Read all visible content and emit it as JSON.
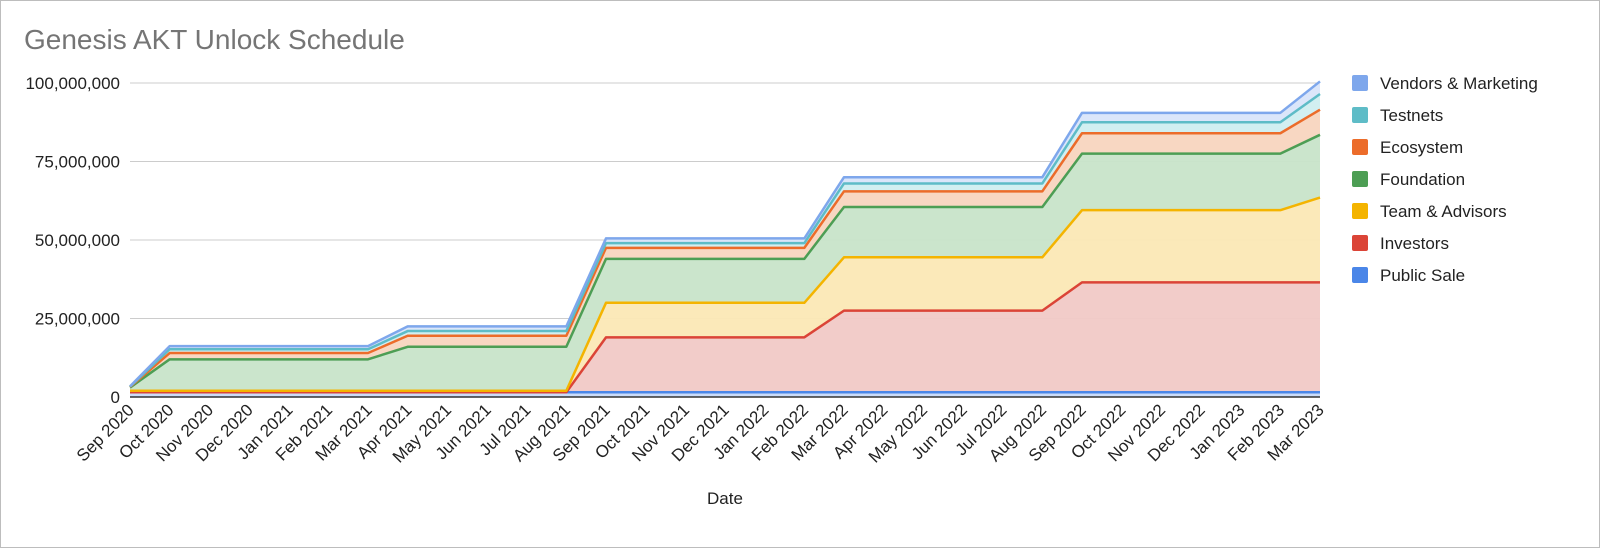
{
  "chart_data": {
    "type": "area",
    "stacked": true,
    "title": "Genesis AKT Unlock Schedule",
    "xlabel": "Date",
    "ylabel": "",
    "ylim": [
      0,
      100000000
    ],
    "yticks": [
      0,
      25000000,
      50000000,
      75000000,
      100000000
    ],
    "ytick_labels": [
      "0",
      "25,000,000",
      "50,000,000",
      "75,000,000",
      "100,000,000"
    ],
    "grid": true,
    "legend_position": "right",
    "categories": [
      "Sep 2020",
      "Oct 2020",
      "Nov 2020",
      "Dec 2020",
      "Jan 2021",
      "Feb 2021",
      "Mar 2021",
      "Apr 2021",
      "May 2021",
      "Jun 2021",
      "Jul 2021",
      "Aug 2021",
      "Sep 2021",
      "Oct 2021",
      "Nov 2021",
      "Dec 2021",
      "Jan 2022",
      "Feb 2022",
      "Mar 2022",
      "Apr 2022",
      "May 2022",
      "Jun 2022",
      "Jul 2022",
      "Aug 2022",
      "Sep 2022",
      "Oct 2022",
      "Nov 2022",
      "Dec 2022",
      "Jan 2023",
      "Feb 2023",
      "Mar 2023"
    ],
    "series": [
      {
        "name": "Public Sale",
        "color": "#4a86e8",
        "fill": "#c8daf9",
        "values": [
          1500000,
          1500000,
          1500000,
          1500000,
          1500000,
          1500000,
          1500000,
          1500000,
          1500000,
          1500000,
          1500000,
          1500000,
          1500000,
          1500000,
          1500000,
          1500000,
          1500000,
          1500000,
          1500000,
          1500000,
          1500000,
          1500000,
          1500000,
          1500000,
          1500000,
          1500000,
          1500000,
          1500000,
          1500000,
          1500000,
          1500000
        ]
      },
      {
        "name": "Investors",
        "color": "#db4437",
        "fill": "#f1c9c6",
        "values": [
          0,
          0,
          0,
          0,
          0,
          0,
          0,
          0,
          0,
          0,
          0,
          0,
          17500000,
          17500000,
          17500000,
          17500000,
          17500000,
          17500000,
          26000000,
          26000000,
          26000000,
          26000000,
          26000000,
          26000000,
          35000000,
          35000000,
          35000000,
          35000000,
          35000000,
          35000000,
          35000000
        ]
      },
      {
        "name": "Team & Advisors",
        "color": "#f4b400",
        "fill": "#fbe8b5",
        "values": [
          500000,
          500000,
          500000,
          500000,
          500000,
          500000,
          500000,
          500000,
          500000,
          500000,
          500000,
          500000,
          11000000,
          11000000,
          11000000,
          11000000,
          11000000,
          11000000,
          17000000,
          17000000,
          17000000,
          17000000,
          17000000,
          17000000,
          23000000,
          23000000,
          23000000,
          23000000,
          23000000,
          23000000,
          27000000
        ]
      },
      {
        "name": "Foundation",
        "color": "#4d9e54",
        "fill": "#c8e4c9",
        "values": [
          1000000,
          10000000,
          10000000,
          10000000,
          10000000,
          10000000,
          10000000,
          14000000,
          14000000,
          14000000,
          14000000,
          14000000,
          14000000,
          14000000,
          14000000,
          14000000,
          14000000,
          14000000,
          16000000,
          16000000,
          16000000,
          16000000,
          16000000,
          16000000,
          18000000,
          18000000,
          18000000,
          18000000,
          18000000,
          18000000,
          20000000
        ]
      },
      {
        "name": "Ecosystem",
        "color": "#ec6c2a",
        "fill": "#f8d5bf",
        "values": [
          200000,
          2000000,
          2000000,
          2000000,
          2000000,
          2000000,
          2000000,
          3500000,
          3500000,
          3500000,
          3500000,
          3500000,
          3500000,
          3500000,
          3500000,
          3500000,
          3500000,
          3500000,
          5000000,
          5000000,
          5000000,
          5000000,
          5000000,
          5000000,
          6500000,
          6500000,
          6500000,
          6500000,
          6500000,
          6500000,
          8000000
        ]
      },
      {
        "name": "Testnets",
        "color": "#5ebcc7",
        "fill": "#d0eef0",
        "values": [
          100000,
          1200000,
          1200000,
          1200000,
          1200000,
          1200000,
          1200000,
          1500000,
          1500000,
          1500000,
          1500000,
          1500000,
          1500000,
          1500000,
          1500000,
          1500000,
          1500000,
          1500000,
          2500000,
          2500000,
          2500000,
          2500000,
          2500000,
          2500000,
          3500000,
          3500000,
          3500000,
          3500000,
          3500000,
          3500000,
          5000000
        ]
      },
      {
        "name": "Vendors & Marketing",
        "color": "#7ea7ec",
        "fill": "#d9e5fa",
        "values": [
          100000,
          1000000,
          1000000,
          1000000,
          1000000,
          1000000,
          1000000,
          1500000,
          1500000,
          1500000,
          1500000,
          1500000,
          1500000,
          1500000,
          1500000,
          1500000,
          1500000,
          1500000,
          2000000,
          2000000,
          2000000,
          2000000,
          2000000,
          2000000,
          3000000,
          3000000,
          3000000,
          3000000,
          3000000,
          3000000,
          4000000
        ]
      }
    ]
  }
}
